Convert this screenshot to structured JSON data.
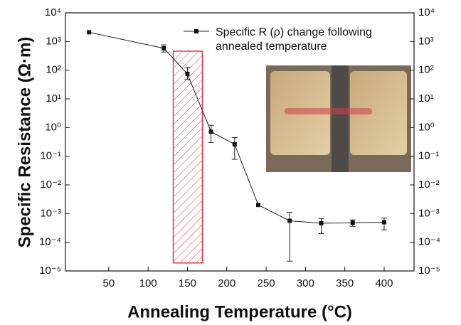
{
  "chart_data": {
    "type": "line",
    "x_label": "Annealing Temperature (°C)",
    "y_label": "Specific Resistance (Ω·m)",
    "x": [
      25,
      120,
      150,
      180,
      210,
      240,
      280,
      320,
      360,
      400
    ],
    "series": [
      {
        "name": "Specific R (ρ) change following annealed temperature",
        "color": "#222222",
        "values": [
          2100,
          580,
          74,
          0.72,
          0.26,
          0.002,
          0.00056,
          0.00046,
          0.00048,
          0.0005
        ],
        "error_low": [
          null,
          430,
          47,
          0.3,
          0.078,
          null,
          2.2e-05,
          0.0002,
          0.00036,
          0.00027
        ],
        "error_high": [
          null,
          760,
          123,
          1.2,
          0.45,
          null,
          0.0011,
          0.00067,
          0.0006,
          0.0007
        ]
      }
    ],
    "xlim": [
      -5,
      438
    ],
    "xticks": [
      50,
      100,
      150,
      200,
      250,
      300,
      350,
      400
    ],
    "ylim": [
      1e-05,
      10000
    ],
    "log_y": true,
    "yticks": [
      {
        "value": 1e-05,
        "label": "10⁻⁵"
      },
      {
        "value": 0.0001,
        "label": "10⁻⁴"
      },
      {
        "value": 0.001,
        "label": "10⁻³"
      },
      {
        "value": 0.01,
        "label": "10⁻²"
      },
      {
        "value": 0.1,
        "label": "10⁻¹"
      },
      {
        "value": 1,
        "label": "10⁰"
      },
      {
        "value": 10,
        "label": "10¹"
      },
      {
        "value": 100,
        "label": "10²"
      },
      {
        "value": 1000,
        "label": "10³"
      },
      {
        "value": 10000,
        "label": "10⁴"
      }
    ],
    "highlight_region": {
      "x": [
        132,
        169
      ],
      "y": [
        1.9e-05,
        460
      ],
      "color": "#e8323c"
    }
  }
}
